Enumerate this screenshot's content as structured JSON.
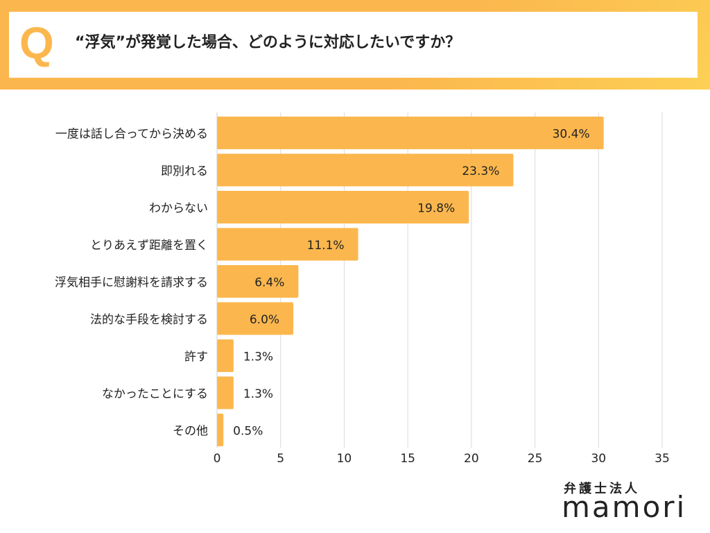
{
  "header": {
    "q_label": "Q",
    "question": "“浮気”が発覚した場合、どのように対応したいですか？"
  },
  "logo": {
    "sub": "弁護士法人",
    "main": "mamori"
  },
  "colors": {
    "accent": "#fbb74e",
    "accent_light": "#fdd054",
    "text": "#222222",
    "grid": "#d9d9d9"
  },
  "chart_data": {
    "type": "bar",
    "orientation": "horizontal",
    "categories": [
      "一度は話し合ってから決める",
      "即別れる",
      "わからない",
      "とりあえず距離を置く",
      "浮気相手に慰謝料を請求する",
      "法的な手段を検討する",
      "許す",
      "なかったことにする",
      "その他"
    ],
    "values": [
      30.4,
      23.3,
      19.8,
      11.1,
      6.4,
      6.0,
      1.3,
      1.3,
      0.5
    ],
    "value_labels": [
      "30.4%",
      "23.3%",
      "19.8%",
      "11.1%",
      "6.4%",
      "6.0%",
      "1.3%",
      "1.3%",
      "0.5%"
    ],
    "xlim": [
      0,
      35
    ],
    "xticks": [
      0,
      5,
      10,
      15,
      20,
      25,
      30,
      35
    ],
    "grid": true,
    "title": "",
    "xlabel": "",
    "ylabel": ""
  }
}
